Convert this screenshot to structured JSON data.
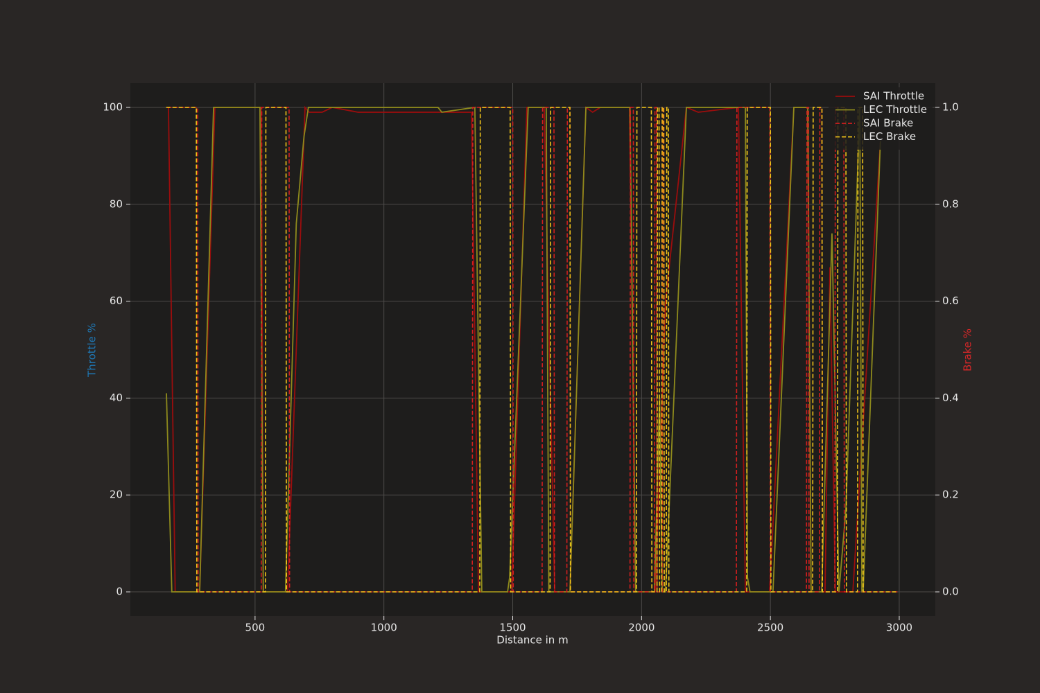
{
  "chart_data": {
    "type": "line",
    "xlabel": "Distance in m",
    "ylabel": "Throttle %",
    "y2label": "Brake %",
    "xlim": [
      16,
      3140
    ],
    "xticks": [
      500,
      1000,
      1500,
      2000,
      2500,
      3000
    ],
    "ylim": [
      -5,
      105
    ],
    "yticks": [
      0,
      20,
      40,
      60,
      80,
      100
    ],
    "y2lim": [
      -0.05,
      1.05
    ],
    "y2ticks": [
      {
        "value": 0,
        "label": "0.0"
      },
      {
        "value": 0.2,
        "label": "0.2"
      },
      {
        "value": 0.4,
        "label": "0.4"
      },
      {
        "value": 0.6,
        "label": "0.6"
      },
      {
        "value": 0.8,
        "label": "0.8"
      },
      {
        "value": 1,
        "label": "1.0"
      }
    ],
    "grid": true,
    "legend": "upper right",
    "series": [
      {
        "name": "SAI Throttle",
        "color": "#9b0d0d",
        "style": "solid",
        "x": [
          164,
          190,
          285,
          344,
          524,
          532,
          626,
          694,
          710,
          760,
          800,
          900,
          1340,
          1367,
          1496,
          1555,
          1622,
          1663,
          1722,
          1784,
          1810,
          1840,
          1953,
          1977,
          2053,
          2093,
          2174,
          2220,
          2376,
          2403,
          2497,
          2591,
          2645,
          2658,
          2712,
          2731,
          2752,
          2820,
          2927
        ],
        "values": [
          100,
          0,
          0,
          100,
          100,
          0,
          0,
          100,
          99,
          99,
          100,
          99,
          99,
          0,
          0,
          100,
          100,
          0,
          0,
          100,
          99,
          100,
          100,
          0,
          0,
          60,
          100,
          99,
          100,
          0,
          0,
          100,
          100,
          0,
          0,
          67,
          0,
          0,
          93
        ]
      },
      {
        "name": "LEC Throttle",
        "color": "#8e8a1c",
        "style": "solid",
        "x": [
          156,
          177,
          285,
          339,
          519,
          532,
          618,
          660,
          690,
          707,
          1210,
          1225,
          1353,
          1380,
          1480,
          1488,
          1560,
          1630,
          1640,
          1722,
          1784,
          1955,
          1977,
          2050,
          2070,
          2080,
          2093,
          2174,
          2403,
          2411,
          2421,
          2510,
          2591,
          2645,
          2658,
          2699,
          2739,
          2766,
          2793,
          2847,
          2855,
          2860,
          2927
        ],
        "values": [
          41,
          0,
          0,
          100,
          100,
          0,
          0,
          76,
          94,
          100,
          100,
          99,
          100,
          0,
          0,
          3,
          100,
          100,
          0,
          0,
          100,
          100,
          0,
          0,
          40,
          0,
          0,
          100,
          100,
          3,
          0,
          0,
          100,
          100,
          0,
          0,
          74,
          0,
          17,
          100,
          0,
          0,
          93
        ]
      },
      {
        "name": "SAI Brake",
        "color": "#d11f1f",
        "style": "dashed",
        "axis": "y2",
        "x": [
          160,
          277,
          279,
          524,
          526,
          632,
          634,
          1343,
          1345,
          1500,
          1502,
          1614,
          1616,
          1660,
          1662,
          1710,
          1712,
          1722,
          1724,
          1955,
          1957,
          1968,
          1970,
          2050,
          2052,
          2058,
          2060,
          2080,
          2082,
          2086,
          2088,
          2368,
          2370,
          2498,
          2500,
          2640,
          2642,
          2648,
          2650,
          2690,
          2692,
          2700,
          2702,
          2750,
          2752,
          2785,
          2787,
          2995
        ],
        "values": [
          1,
          1,
          0,
          0,
          1,
          1,
          0,
          0,
          1,
          1,
          0,
          0,
          1,
          1,
          0,
          0,
          1,
          1,
          0,
          0,
          1,
          1,
          0,
          0,
          1,
          1,
          0,
          0,
          1,
          1,
          0,
          0,
          1,
          1,
          0,
          0,
          1,
          1,
          0,
          0,
          1,
          1,
          0,
          0,
          1,
          1,
          0,
          0
        ]
      },
      {
        "name": "LEC Brake",
        "color": "#f0c419",
        "style": "dashed",
        "axis": "y2",
        "x": [
          155,
          272,
          274,
          540,
          542,
          620,
          622,
          1372,
          1374,
          1490,
          1492,
          1645,
          1647,
          1722,
          1724,
          1980,
          1982,
          2038,
          2040,
          2060,
          2062,
          2068,
          2070,
          2078,
          2080,
          2086,
          2088,
          2096,
          2098,
          2104,
          2106,
          2408,
          2410,
          2500,
          2502,
          2664,
          2666,
          2700,
          2702,
          2760,
          2762,
          2793,
          2795,
          2838,
          2840,
          2858,
          2860,
          2995
        ],
        "values": [
          1,
          1,
          0,
          0,
          1,
          1,
          0,
          0,
          1,
          1,
          0,
          0,
          1,
          1,
          0,
          0,
          1,
          1,
          0,
          0,
          1,
          1,
          0,
          0,
          1,
          1,
          0,
          0,
          1,
          1,
          0,
          0,
          1,
          1,
          0,
          0,
          1,
          1,
          0,
          0,
          1,
          1,
          0,
          0,
          1,
          1,
          0,
          0
        ]
      }
    ]
  }
}
